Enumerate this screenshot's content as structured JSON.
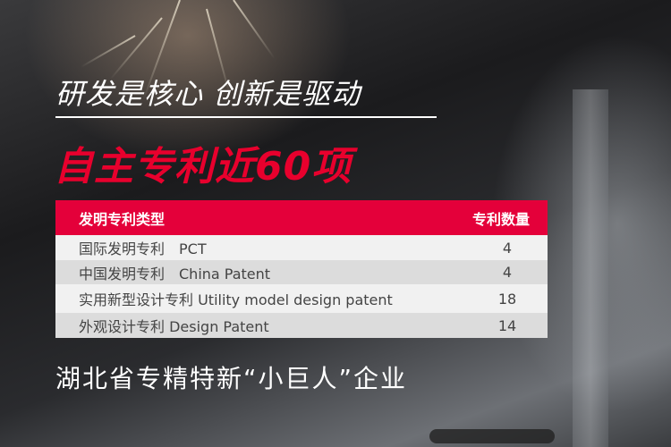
{
  "slogan": "研发是核心 创新是驱动",
  "headline": "自主专利近60项",
  "table": {
    "headers": [
      "发明专利类型",
      "专利数量"
    ],
    "rows": [
      {
        "type": "国际发明专利　PCT",
        "count": "4"
      },
      {
        "type": "中国发明专利　China Patent",
        "count": "4"
      },
      {
        "type": "实用新型设计专利  Utility model design patent",
        "count": "18"
      },
      {
        "type": "外观设计专利  Design Patent",
        "count": "14"
      }
    ]
  },
  "footer": "湖北省专精特新“小巨人”企业",
  "colors": {
    "accent": "#e4003a",
    "headline": "#e8002d"
  }
}
